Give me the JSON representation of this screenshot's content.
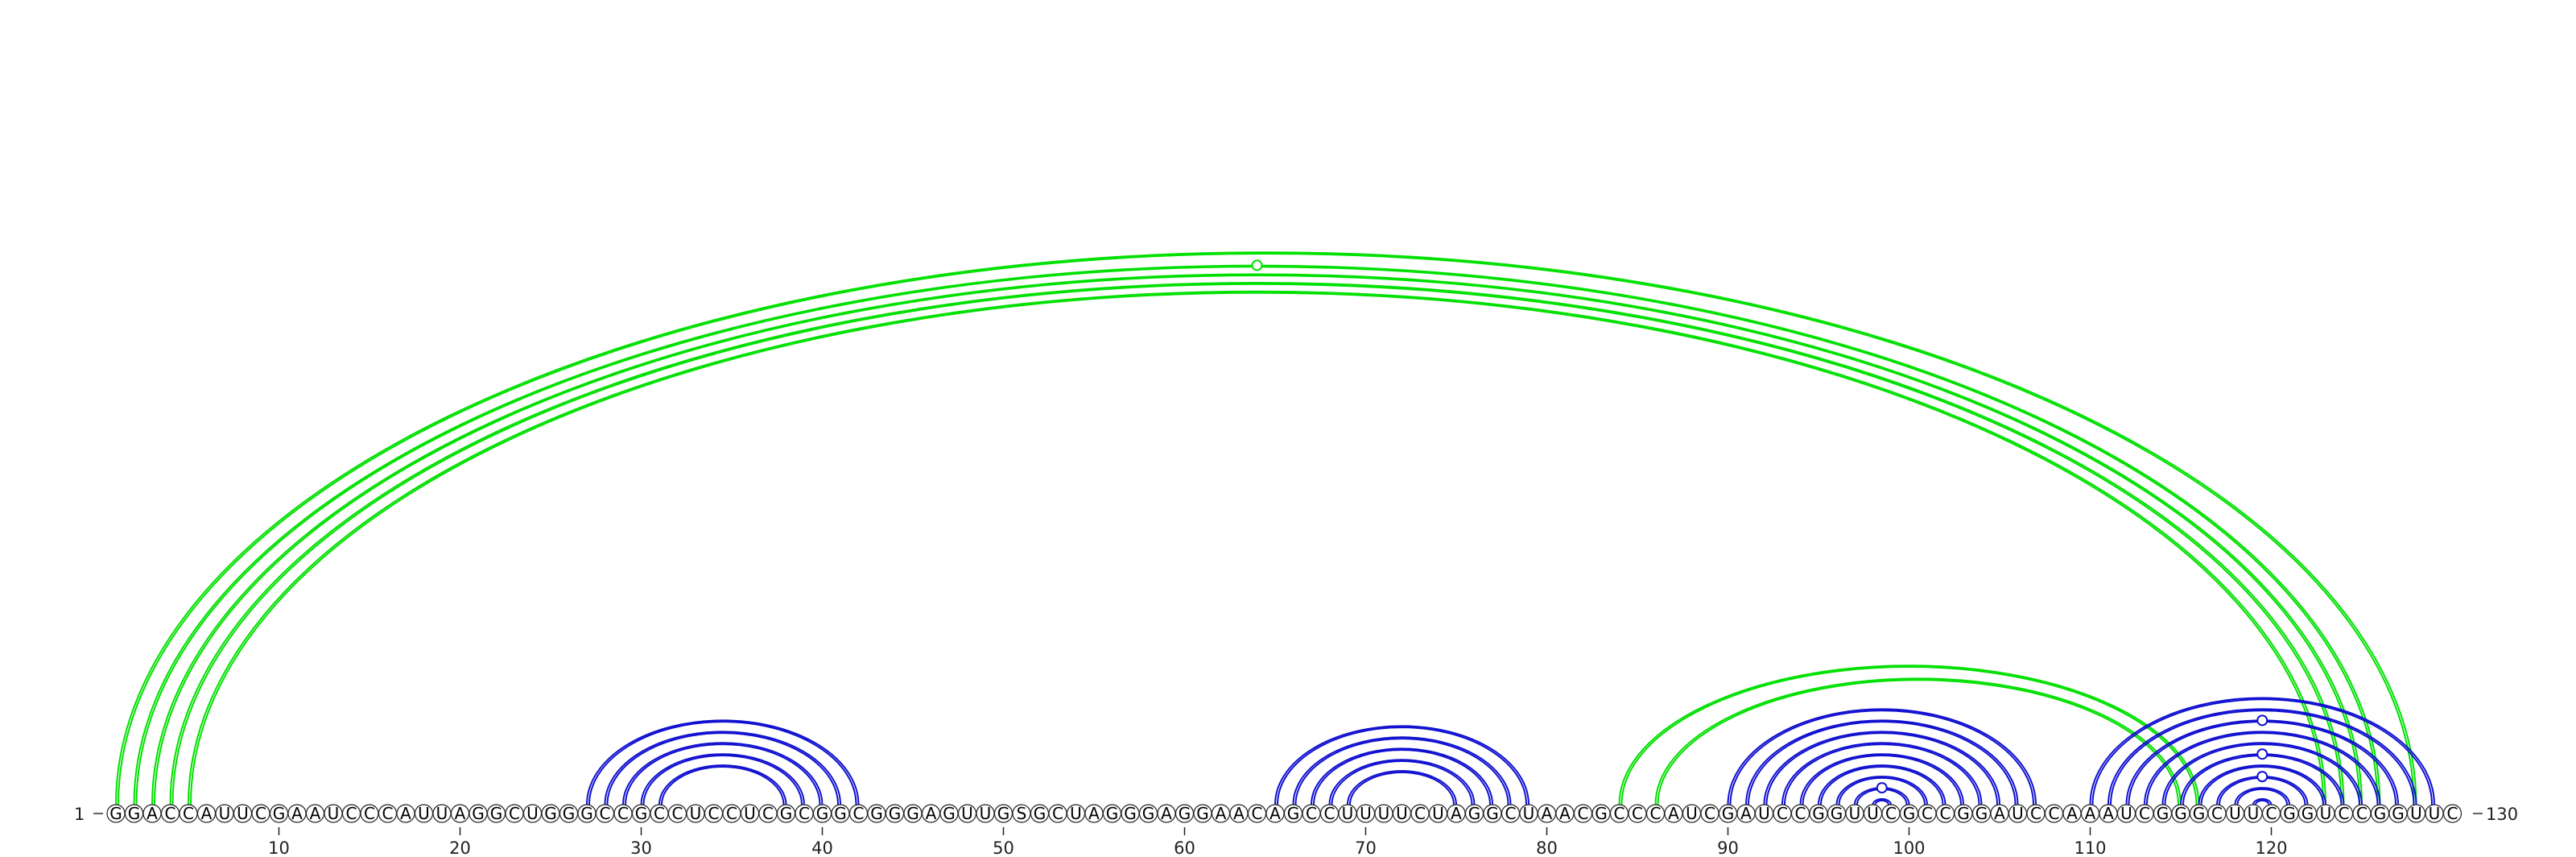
{
  "sequence": "GGACCAUUCGAAUCCCAUUAGGCUGGGCCGCCUCCUCGCGGCGGGAGUUGSGCUAGGGAGGAACAGCCUUUUCUAGGCUAACGCCCAUCGAUCCGGUUCGCCGGAUCCAAAUCGGGCUUCGGUCCGGUUC",
  "start_label": "1",
  "end_label": "130",
  "ticks": [
    10,
    20,
    30,
    40,
    50,
    60,
    70,
    80,
    90,
    100,
    110,
    120
  ],
  "colors": {
    "outer_arcs": "#00e000",
    "inner_arcs": "#1010d0",
    "nucleotide_outline": "#222222",
    "text": "#000000"
  },
  "arc_groups": [
    {
      "name": "outer-pseudoknot-stem",
      "color": "outer",
      "pairs": [
        [
          1,
          128
        ],
        [
          2,
          126
        ],
        [
          3,
          125
        ],
        [
          4,
          124
        ],
        [
          5,
          123
        ]
      ]
    },
    {
      "name": "stem-27-42",
      "color": "inner",
      "pairs": [
        [
          27,
          42
        ],
        [
          28,
          41
        ],
        [
          29,
          40
        ],
        [
          30,
          39
        ],
        [
          31,
          38
        ]
      ]
    },
    {
      "name": "stem-65-79",
      "color": "inner",
      "pairs": [
        [
          65,
          79
        ],
        [
          66,
          78
        ],
        [
          67,
          77
        ],
        [
          68,
          76
        ],
        [
          69,
          75
        ]
      ]
    },
    {
      "name": "stem-84-116",
      "color": "outer",
      "pairs": [
        [
          84,
          116
        ],
        [
          86,
          115
        ]
      ]
    },
    {
      "name": "stem-90-107",
      "color": "inner",
      "pairs": [
        [
          90,
          107
        ],
        [
          91,
          106
        ],
        [
          92,
          105
        ],
        [
          93,
          104
        ],
        [
          94,
          103
        ],
        [
          95,
          102
        ],
        [
          96,
          101
        ],
        [
          97,
          100
        ],
        [
          98,
          99
        ]
      ]
    },
    {
      "name": "stem-110-130",
      "color": "inner",
      "pairs": [
        [
          110,
          129
        ],
        [
          111,
          128
        ],
        [
          112,
          127
        ],
        [
          113,
          126
        ],
        [
          114,
          125
        ],
        [
          115,
          124
        ],
        [
          116,
          123
        ],
        [
          117,
          122
        ],
        [
          118,
          121
        ],
        [
          119,
          120
        ]
      ]
    }
  ],
  "unpaired_markers": [
    {
      "name": "top-marker",
      "color": "outer",
      "between": [
        2,
        126
      ]
    },
    {
      "name": "hairpin-marker-98",
      "color": "inner",
      "between": [
        97,
        100
      ]
    },
    {
      "name": "marker-120-a",
      "color": "inner",
      "between": [
        112,
        127
      ]
    },
    {
      "name": "marker-120-b",
      "color": "inner",
      "between": [
        115,
        124
      ]
    },
    {
      "name": "marker-120-c",
      "color": "inner",
      "between": [
        117,
        122
      ]
    }
  ]
}
